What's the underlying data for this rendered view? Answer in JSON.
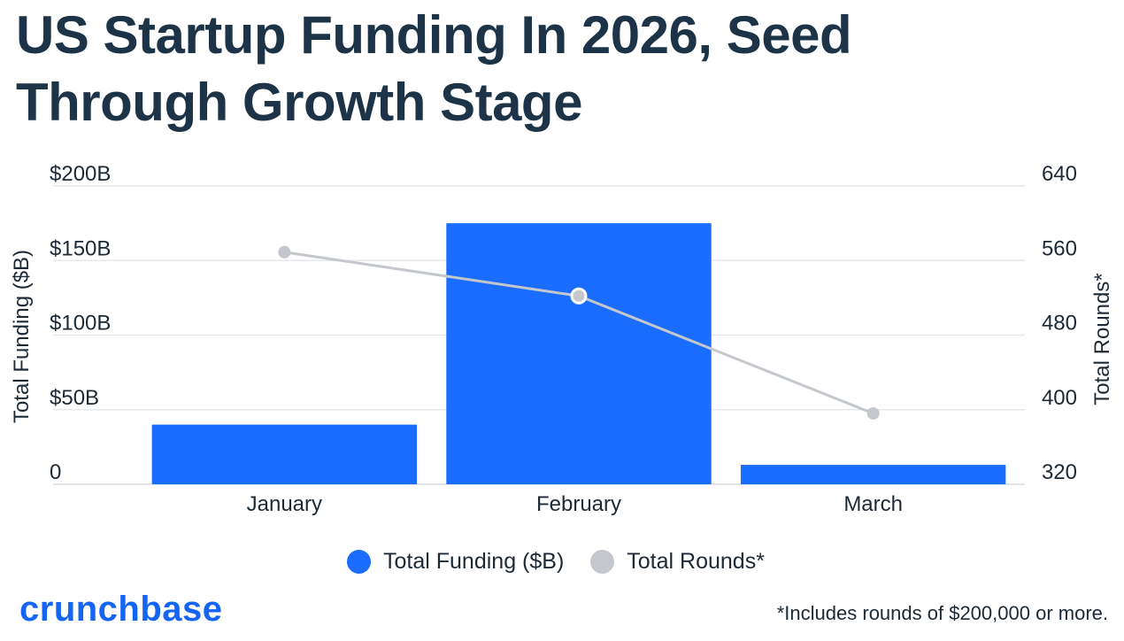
{
  "title": "US Startup Funding In 2026, Seed Through Growth Stage",
  "chart_data": {
    "type": "bar",
    "categories": [
      "January",
      "February",
      "March"
    ],
    "series": [
      {
        "name": "Total Funding ($B)",
        "type": "bar",
        "axis": "left",
        "color": "#1a6dff",
        "values": [
          40,
          175,
          13
        ]
      },
      {
        "name": "Total Rounds*",
        "type": "line",
        "axis": "right",
        "color": "#c4c8cc",
        "values": [
          569,
          522,
          396
        ]
      }
    ],
    "y_left": {
      "label": "Total Funding ($B)",
      "range": [
        0,
        200
      ],
      "ticks": [
        0,
        50,
        100,
        150,
        200
      ],
      "tick_labels": [
        "0",
        "$50B",
        "$100B",
        "$150B",
        "$200B"
      ]
    },
    "y_right": {
      "label": "Total Rounds*",
      "range": [
        320,
        640
      ],
      "ticks": [
        320,
        400,
        480,
        560,
        640
      ],
      "tick_labels": [
        "320",
        "400",
        "480",
        "560",
        "640"
      ]
    },
    "grid": true,
    "legend_position": "bottom"
  },
  "legend": [
    {
      "label": "Total Funding ($B)",
      "color": "#1a6dff"
    },
    {
      "label": "Total Rounds*",
      "color": "#c4c8cc"
    }
  ],
  "logo_text": "crunchbase",
  "footnote": "*Includes rounds of $200,000 or more."
}
